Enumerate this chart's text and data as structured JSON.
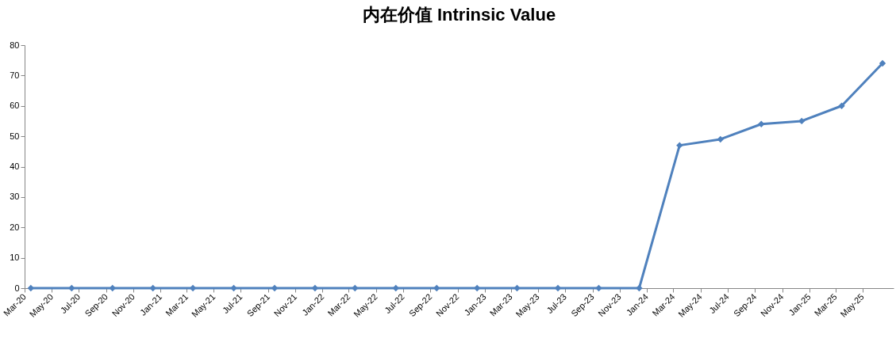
{
  "chart_data": {
    "type": "line",
    "title": "内在价值 Intrinsic Value",
    "x": [
      "2020-03-15",
      "2020-06-15",
      "2020-09-15",
      "2020-12-15",
      "2021-03-15",
      "2021-06-15",
      "2021-09-15",
      "2021-12-15",
      "2022-03-15",
      "2022-06-15",
      "2022-09-15",
      "2022-12-15",
      "2023-03-15",
      "2023-06-15",
      "2023-09-15",
      "2023-12-15",
      "2024-03-15",
      "2024-06-15",
      "2024-09-15",
      "2024-12-15",
      "2025-03-15",
      "2025-06-15"
    ],
    "series": [
      {
        "color": "#4f81bd",
        "values": [
          0,
          0,
          0,
          0,
          0,
          0,
          0,
          0,
          0,
          0,
          0,
          0,
          0,
          0,
          0,
          0,
          47,
          49,
          54,
          55,
          60,
          74
        ]
      }
    ],
    "marker": "diamond",
    "line_style": "solid",
    "grid": false,
    "legend": false,
    "xlim": [
      "2020-03-01",
      "2025-07-10"
    ],
    "xticks": [
      {
        "value": "2020-03",
        "label": "Mar-20"
      },
      {
        "value": "2020-05",
        "label": "May-20"
      },
      {
        "value": "2020-07",
        "label": "Jul-20"
      },
      {
        "value": "2020-09",
        "label": "Sep-20"
      },
      {
        "value": "2020-11",
        "label": "Nov-20"
      },
      {
        "value": "2021-01",
        "label": "Jan-21"
      },
      {
        "value": "2021-03",
        "label": "Mar-21"
      },
      {
        "value": "2021-05",
        "label": "May-21"
      },
      {
        "value": "2021-07",
        "label": "Jul-21"
      },
      {
        "value": "2021-09",
        "label": "Sep-21"
      },
      {
        "value": "2021-11",
        "label": "Nov-21"
      },
      {
        "value": "2022-01",
        "label": "Jan-22"
      },
      {
        "value": "2022-03",
        "label": "Mar-22"
      },
      {
        "value": "2022-05",
        "label": "May-22"
      },
      {
        "value": "2022-07",
        "label": "Jul-22"
      },
      {
        "value": "2022-09",
        "label": "Sep-22"
      },
      {
        "value": "2022-11",
        "label": "Nov-22"
      },
      {
        "value": "2023-01",
        "label": "Jan-23"
      },
      {
        "value": "2023-03",
        "label": "Mar-23"
      },
      {
        "value": "2023-05",
        "label": "May-23"
      },
      {
        "value": "2023-07",
        "label": "Jul-23"
      },
      {
        "value": "2023-09",
        "label": "Sep-23"
      },
      {
        "value": "2023-11",
        "label": "Nov-23"
      },
      {
        "value": "2024-01",
        "label": "Jan-24"
      },
      {
        "value": "2024-03",
        "label": "Mar-24"
      },
      {
        "value": "2024-05",
        "label": "May-24"
      },
      {
        "value": "2024-07",
        "label": "Jul-24"
      },
      {
        "value": "2024-09",
        "label": "Sep-24"
      },
      {
        "value": "2024-11",
        "label": "Nov-24"
      },
      {
        "value": "2025-01",
        "label": "Jan-25"
      },
      {
        "value": "2025-03",
        "label": "Mar-25"
      },
      {
        "value": "2025-05",
        "label": "May-25"
      }
    ],
    "ylim": [
      0,
      80
    ],
    "yticks": [
      0,
      10,
      20,
      30,
      40,
      50,
      60,
      70,
      80
    ]
  }
}
